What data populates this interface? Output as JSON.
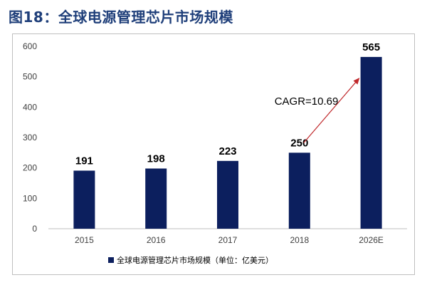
{
  "figure": {
    "title": "图18：全球电源管理芯片市场规模"
  },
  "colors": {
    "bar": "#0c1f5e",
    "title": "#1f3f7a",
    "arrow": "#c0282b",
    "axis": "#bfbfbf"
  },
  "chart_data": {
    "type": "bar",
    "categories": [
      "2015",
      "2016",
      "2017",
      "2018",
      "2026E"
    ],
    "series": [
      {
        "name": "全球电源管理芯片市场规模（单位：亿美元）",
        "values": [
          191,
          198,
          223,
          250,
          565
        ]
      }
    ],
    "data_labels": [
      "191",
      "198",
      "223",
      "250",
      "565"
    ],
    "ylim": [
      0,
      600
    ],
    "yticks": [
      0,
      100,
      200,
      300,
      400,
      500,
      600
    ],
    "grid": false,
    "legend_position": "bottom",
    "annotation": {
      "text": "CAGR=10.69",
      "arrow_from_category": "2018",
      "arrow_to_category": "2026E"
    }
  }
}
